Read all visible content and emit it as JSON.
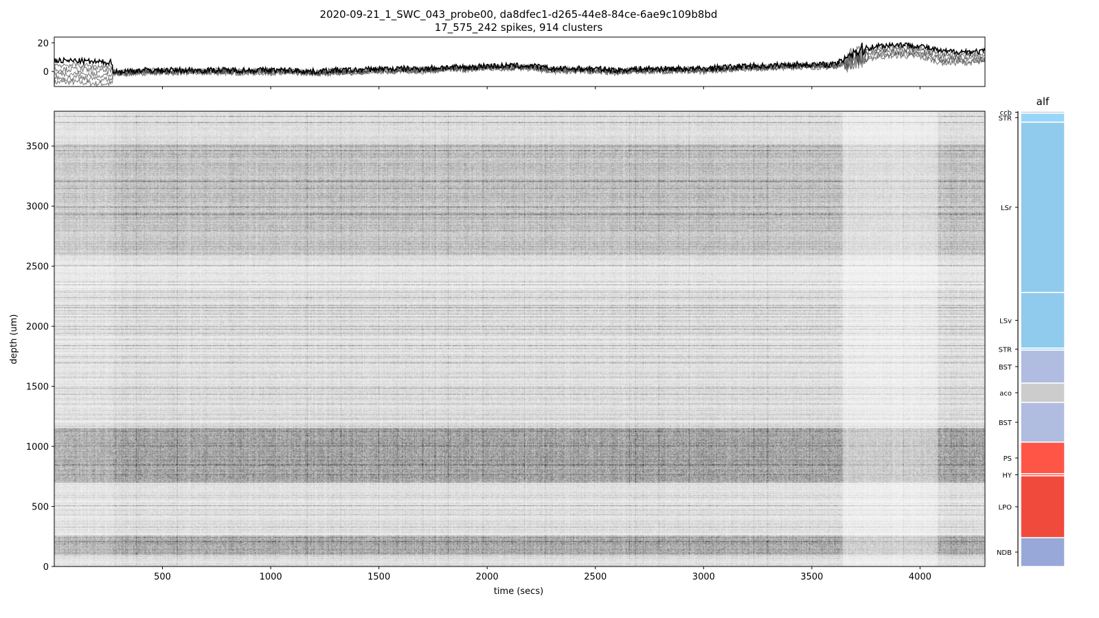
{
  "title_line1": "2020-09-21_1_SWC_043_probe00, da8dfec1-d265-44e8-84ce-6ae9c109b8bd",
  "title_line2": "17_575_242 spikes, 914 clusters",
  "chart_data": [
    {
      "type": "line",
      "panel": "drift",
      "xlim": [
        0,
        4300
      ],
      "ylim": [
        -10.5,
        24
      ],
      "yticks": [
        0,
        20
      ],
      "xticks": [
        500,
        1000,
        1500,
        2000,
        2500,
        3000,
        3500,
        4000
      ],
      "x": [
        0,
        100,
        200,
        300,
        400,
        500,
        600,
        700,
        800,
        900,
        1000,
        1100,
        1200,
        1300,
        1400,
        1500,
        1600,
        1700,
        1800,
        1900,
        2000,
        2100,
        2200,
        2300,
        2400,
        2500,
        2600,
        2700,
        2800,
        2900,
        3000,
        3100,
        3200,
        3300,
        3400,
        3500,
        3600,
        3700,
        3800,
        3900,
        4000,
        4100,
        4200,
        4300
      ],
      "y": [
        0,
        0,
        -1,
        -1,
        0,
        0,
        0,
        0,
        0,
        0,
        0,
        0,
        -1,
        0,
        0,
        1,
        1,
        1,
        2,
        2,
        3,
        3,
        3,
        1,
        1,
        1,
        0,
        1,
        1,
        1,
        1,
        2,
        3,
        3,
        4,
        4,
        4,
        10,
        14,
        15,
        14,
        10,
        10,
        10
      ]
    },
    {
      "type": "heatmap",
      "panel": "raster",
      "xlabel": "time (secs)",
      "ylabel": "depth (um)",
      "xlim": [
        0,
        4300
      ],
      "ylim": [
        0,
        3790
      ],
      "xticks": [
        500,
        1000,
        1500,
        2000,
        2500,
        3000,
        3500,
        4000
      ],
      "yticks": [
        0,
        500,
        1000,
        1500,
        2000,
        2500,
        3000,
        3500
      ],
      "colormap": "binary"
    },
    {
      "type": "bar",
      "panel": "brain-regions",
      "title": "alf",
      "regions": [
        {
          "acronym": "ccb",
          "from": 3774,
          "to": 3790,
          "color": "#cccccc"
        },
        {
          "acronym": "STR",
          "from": 3699,
          "to": 3774,
          "color": "#98d6f9"
        },
        {
          "acronym": "LSr",
          "from": 2281,
          "to": 3699,
          "color": "#90cbed"
        },
        {
          "acronym": "LSv",
          "from": 1818,
          "to": 2281,
          "color": "#90cbed"
        },
        {
          "acronym": "STR",
          "from": 1801,
          "to": 1818,
          "color": "#98d6f9"
        },
        {
          "acronym": "BST",
          "from": 1527,
          "to": 1801,
          "color": "#b0bde0"
        },
        {
          "acronym": "aco",
          "from": 1366,
          "to": 1527,
          "color": "#cccccc"
        },
        {
          "acronym": "BST",
          "from": 1035,
          "to": 1366,
          "color": "#b0bde0"
        },
        {
          "acronym": "PS",
          "from": 772,
          "to": 1035,
          "color": "#ff5547"
        },
        {
          "acronym": "HY",
          "from": 755,
          "to": 772,
          "color": "#ff4c3e"
        },
        {
          "acronym": "LPO",
          "from": 240,
          "to": 755,
          "color": "#f04a3c"
        },
        {
          "acronym": "NDB",
          "from": 0,
          "to": 240,
          "color": "#98a8d8"
        }
      ]
    }
  ]
}
